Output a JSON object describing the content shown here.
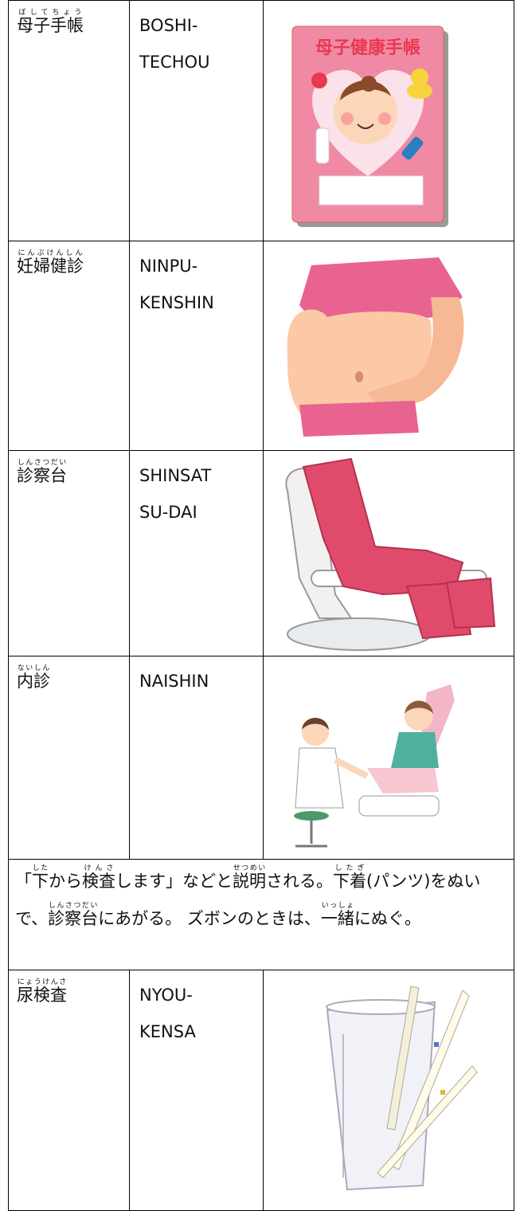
{
  "rows": [
    {
      "term": {
        "base": "母子手帳",
        "ruby": "ぼしてちょう"
      },
      "romaji": [
        "BOSHI-",
        "TECHOU"
      ],
      "cover_title": "母子健康手帳"
    },
    {
      "term": {
        "base": "妊婦健診",
        "ruby": "にんぷけんしん"
      },
      "romaji": [
        "NINPU-",
        "KENSHIN"
      ]
    },
    {
      "term": {
        "base": "診察台",
        "ruby": "しんさつだい"
      },
      "romaji": [
        "SHINSAT",
        "SU-DAI"
      ]
    },
    {
      "term": {
        "base": "内診",
        "ruby": "ないしん"
      },
      "romaji": [
        "NAISHIN"
      ]
    },
    {
      "note": [
        "「",
        {
          "base": "下",
          "ruby": "した"
        },
        "から",
        {
          "base": "検査",
          "ruby": "けんさ"
        },
        "します」などと",
        {
          "base": "説明",
          "ruby": "せつめい"
        },
        "される。",
        {
          "base": "下着",
          "ruby": "したぎ"
        },
        "(パンツ)をぬいで、",
        {
          "base": "診察台",
          "ruby": "しんさつだい"
        },
        "にあがる。 ズボンのときは、",
        {
          "base": "一緒",
          "ruby": "いっしょ"
        },
        "にぬぐ。"
      ]
    },
    {
      "term": {
        "base": "尿検査",
        "ruby": "にょうけんさ"
      },
      "romaji": [
        "NYOU-",
        "KENSA"
      ]
    }
  ]
}
